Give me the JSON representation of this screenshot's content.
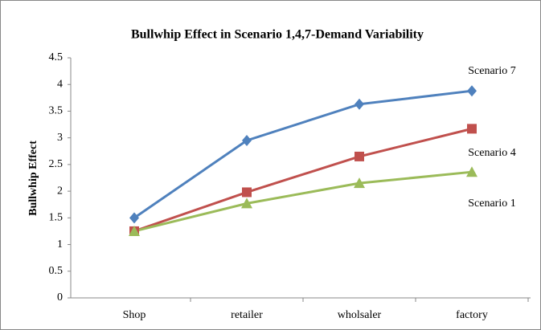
{
  "chart_data": {
    "type": "line",
    "title": "Bullwhip Effect in Scenario 1,4,7-Demand Variability",
    "y_label": "Bullwhip Effect",
    "categories": [
      "Shop",
      "retailer",
      "wholsaler",
      "factory"
    ],
    "series": [
      {
        "name": "Scenario 7",
        "color": "#4f81bd",
        "marker": "diamond",
        "values": [
          1.5,
          2.95,
          3.63,
          3.88
        ]
      },
      {
        "name": "Scenario 4",
        "color": "#c0504d",
        "marker": "square",
        "values": [
          1.25,
          1.98,
          2.65,
          3.17
        ]
      },
      {
        "name": "Scenario 1",
        "color": "#9bbb59",
        "marker": "triangle",
        "values": [
          1.25,
          1.77,
          2.15,
          2.36
        ]
      }
    ],
    "ylim": [
      0,
      4.5
    ],
    "yticks": [
      0,
      0.5,
      1,
      1.5,
      2,
      2.5,
      3,
      3.5,
      4,
      4.5
    ],
    "grid": false
  }
}
